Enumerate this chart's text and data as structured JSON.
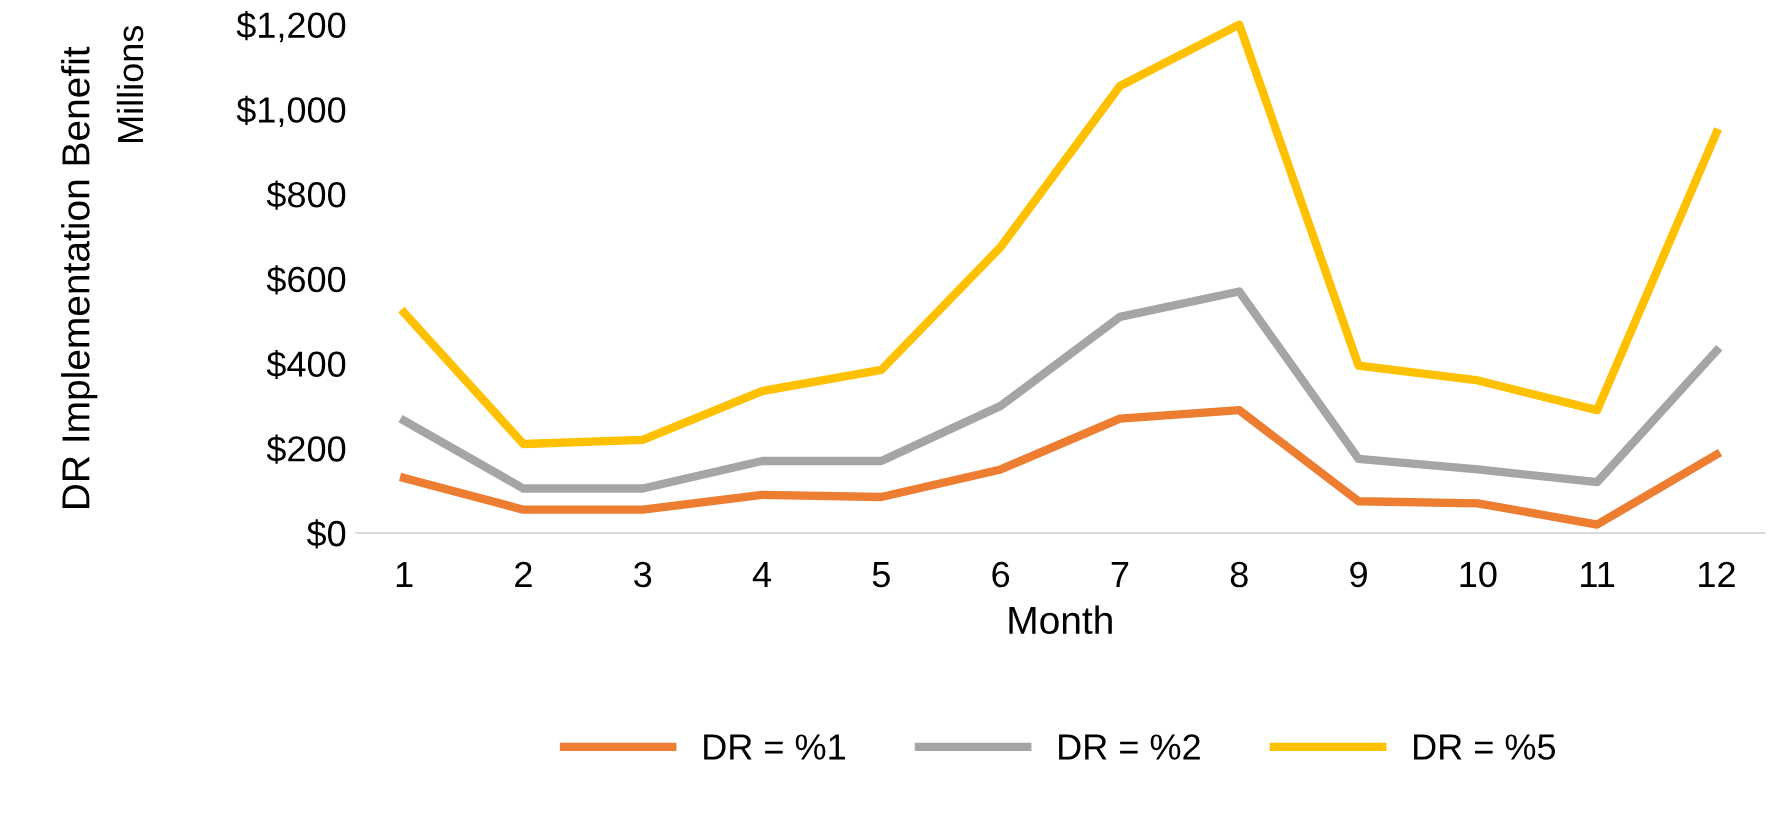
{
  "chart_data": {
    "type": "line",
    "xlabel": "Month",
    "ylabel": "DR Implementation Benefit",
    "annotations": [
      "Millions"
    ],
    "categories": [
      "1",
      "2",
      "3",
      "4",
      "5",
      "6",
      "7",
      "8",
      "9",
      "10",
      "11",
      "12"
    ],
    "series": [
      {
        "name": "DR = %1",
        "color": "#ed7d31",
        "values": [
          130,
          55,
          55,
          90,
          85,
          150,
          270,
          290,
          75,
          70,
          20,
          185
        ]
      },
      {
        "name": "DR = %2",
        "color": "#a5a5a5",
        "values": [
          265,
          105,
          105,
          170,
          170,
          300,
          510,
          570,
          175,
          150,
          120,
          430
        ]
      },
      {
        "name": "DR = %5",
        "color": "#ffc000",
        "values": [
          520,
          210,
          220,
          335,
          385,
          675,
          1055,
          1200,
          395,
          360,
          290,
          945
        ]
      }
    ],
    "ylim": [
      0,
      1200
    ],
    "yticks": [
      {
        "value": 0,
        "label": "$0"
      },
      {
        "value": 200,
        "label": "$200"
      },
      {
        "value": 400,
        "label": "$400"
      },
      {
        "value": 600,
        "label": "$600"
      },
      {
        "value": 800,
        "label": "$800"
      },
      {
        "value": 1000,
        "label": "$1,000"
      },
      {
        "value": 1200,
        "label": "$1,200"
      }
    ],
    "grid": false,
    "legend": "bottom",
    "marker": "none",
    "line_style": "solid"
  }
}
